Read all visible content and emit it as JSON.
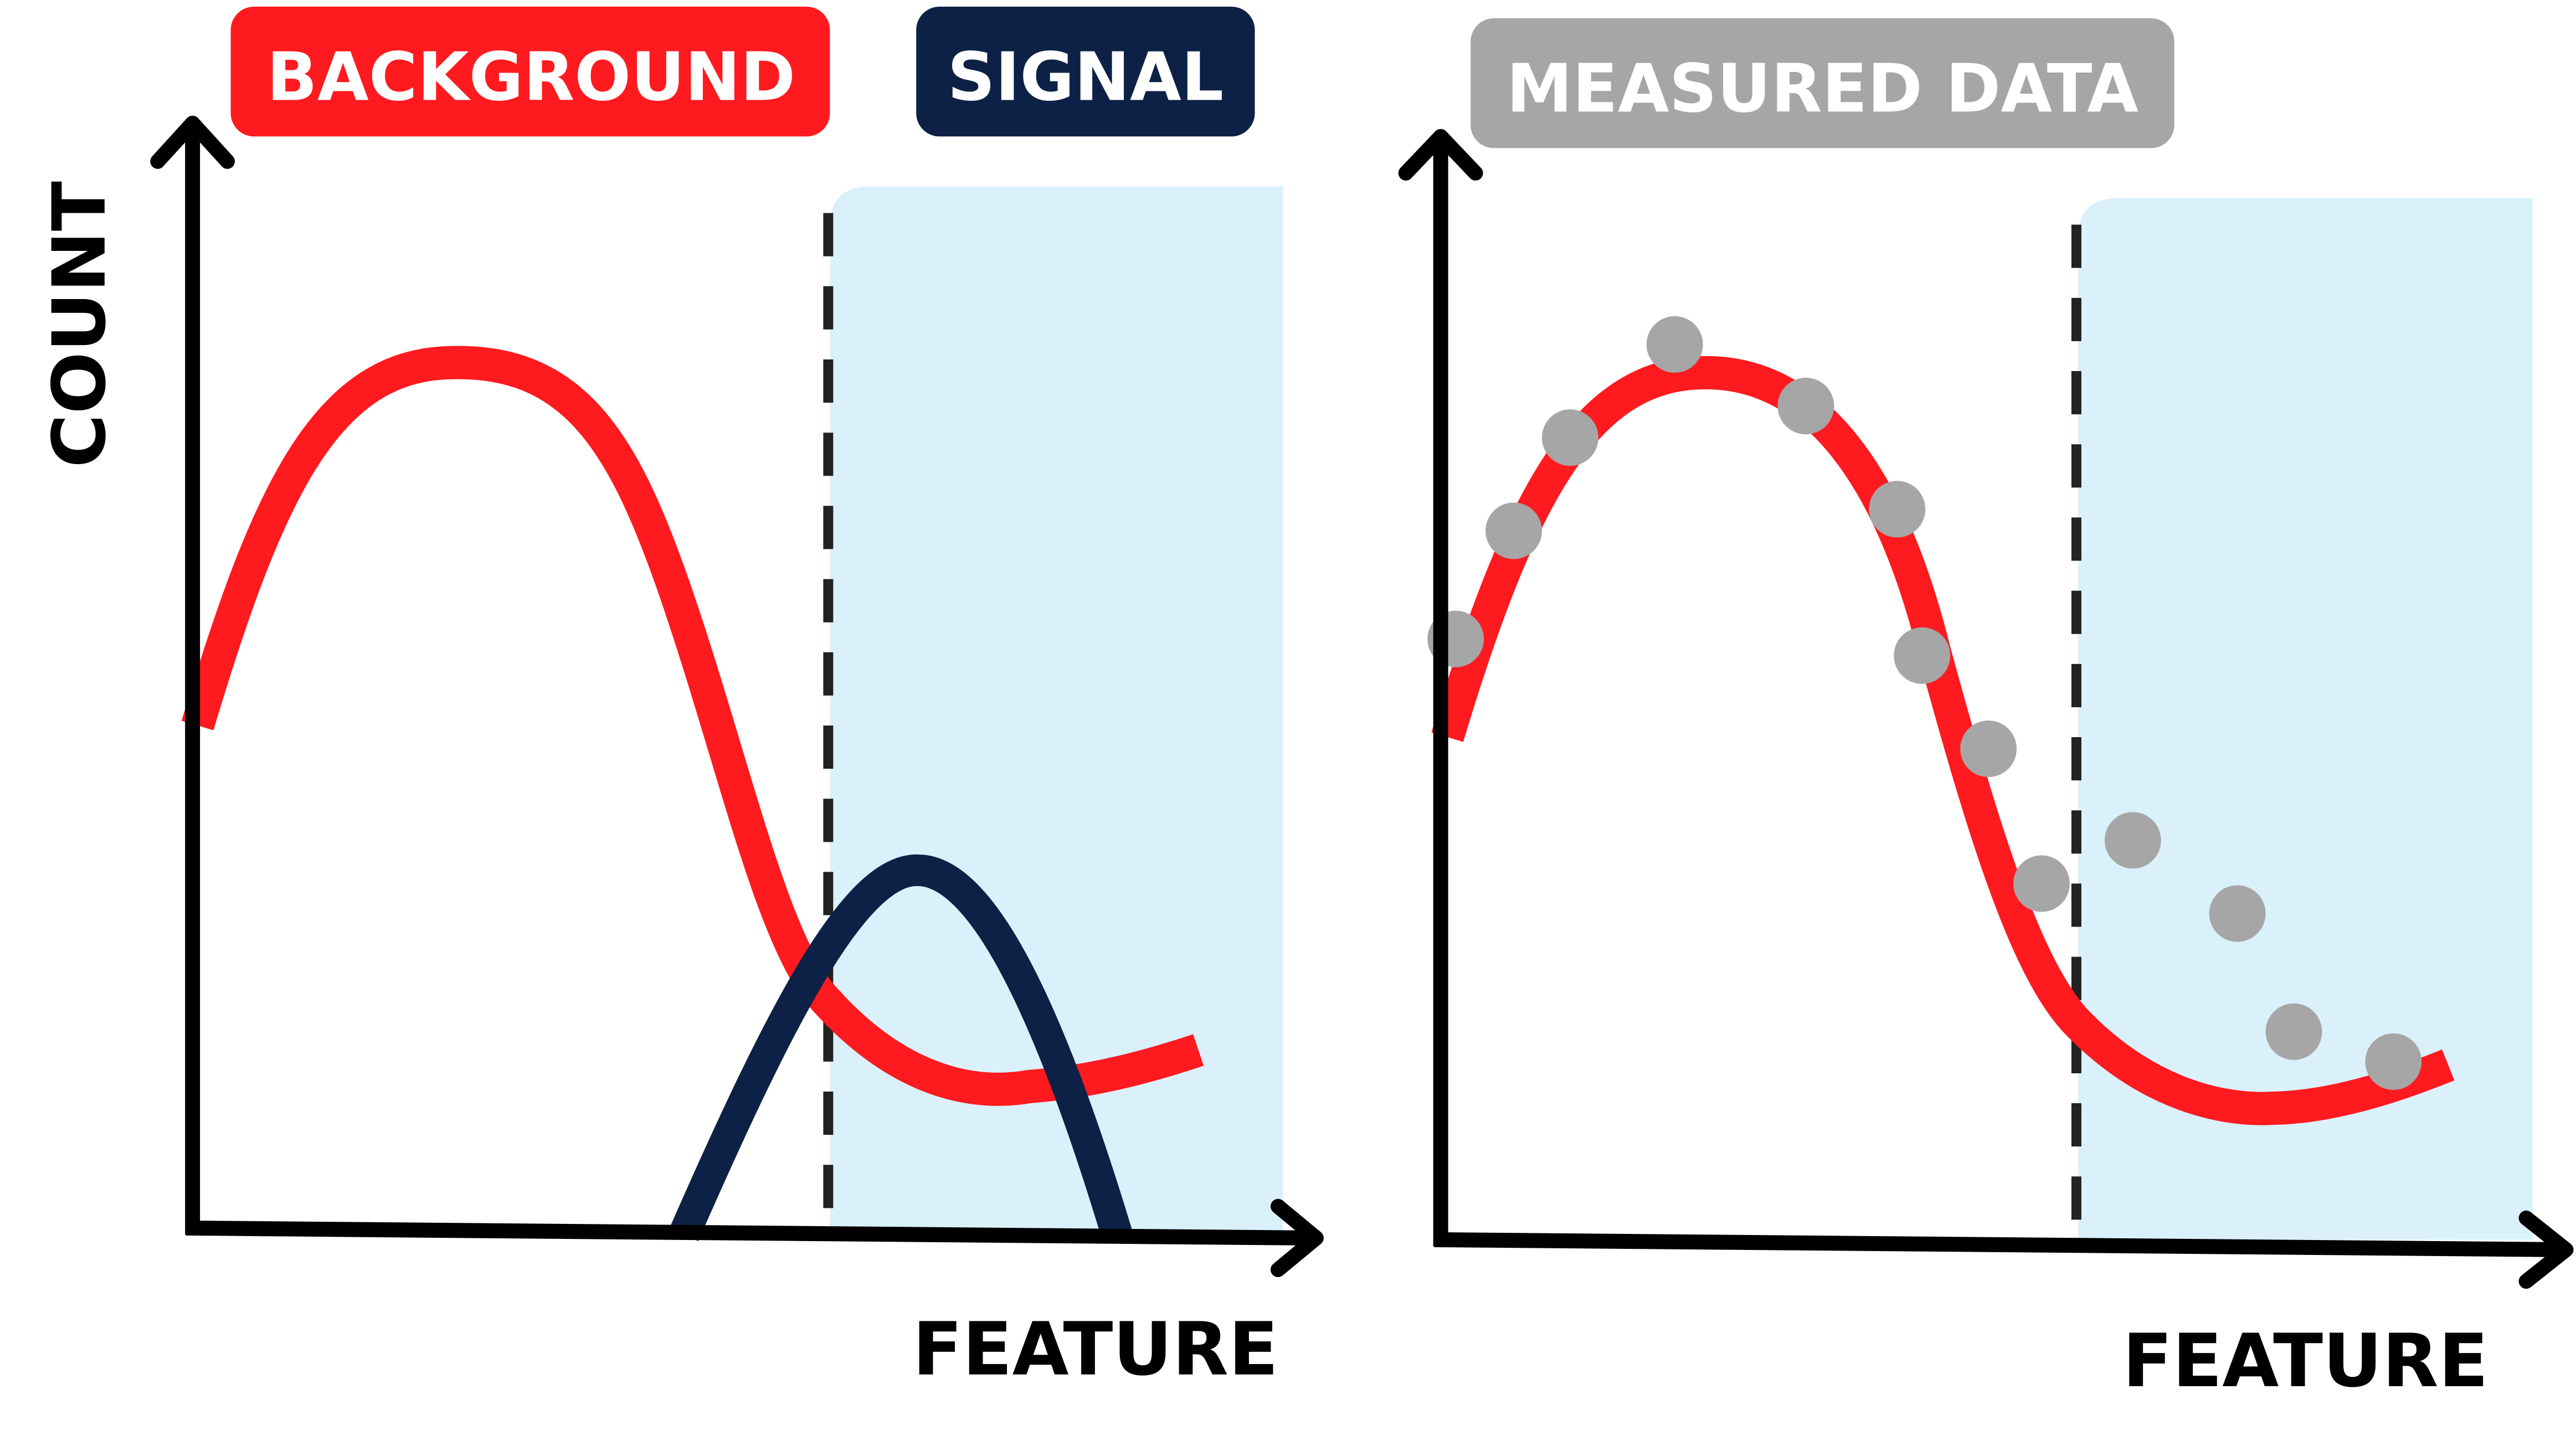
{
  "legend": {
    "background": {
      "label": "BACKGROUND",
      "color": "#ff1a1f"
    },
    "signal": {
      "label": "SIGNAL",
      "color": "#0c2145"
    }
  },
  "left_panel": {
    "ylabel": "COUNT",
    "xlabel": "FEATURE"
  },
  "right_panel": {
    "badge": {
      "label": "MEASURED DATA",
      "color": "#a6a6a6"
    },
    "xlabel": "FEATURE"
  },
  "colors": {
    "axis": "#000000",
    "highlight_region": "#daf1fc",
    "dashed_cut": "#222222",
    "data_points": "#a6a6a6"
  }
}
